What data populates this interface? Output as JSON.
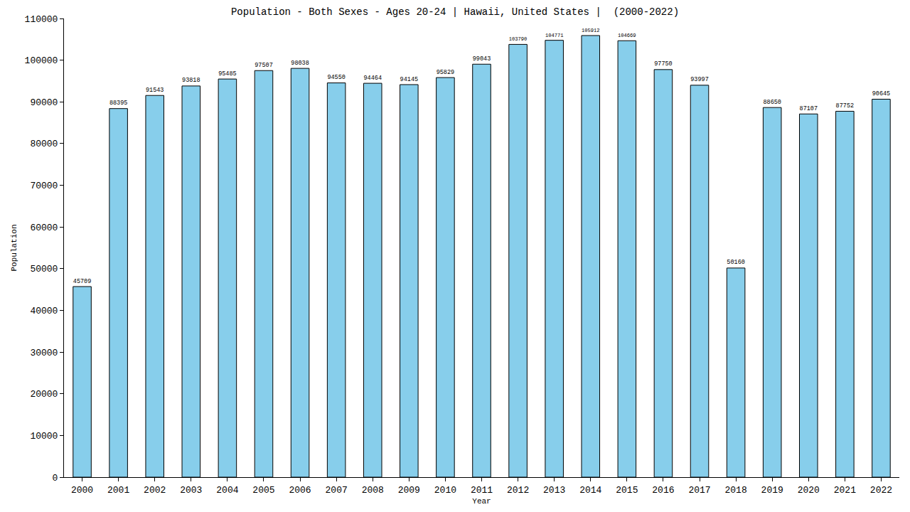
{
  "chart_data": {
    "type": "bar",
    "title": "Population - Both Sexes - Ages 20-24 | Hawaii, United States |  (2000-2022)",
    "x_label": "Year",
    "y_label": "Population",
    "categories": [
      "2000",
      "2001",
      "2002",
      "2003",
      "2004",
      "2005",
      "2006",
      "2007",
      "2008",
      "2009",
      "2010",
      "2011",
      "2012",
      "2013",
      "2014",
      "2015",
      "2016",
      "2017",
      "2018",
      "2019",
      "2020",
      "2021",
      "2022"
    ],
    "values": [
      45709,
      88395,
      91543,
      93818,
      95485,
      97507,
      98038,
      94550,
      94464,
      94145,
      95829,
      99043,
      103790,
      104771,
      105912,
      104669,
      97750,
      93997,
      50160,
      88650,
      87107,
      87752,
      90645
    ],
    "color": "#87ceeb",
    "ylim": [
      0,
      110000
    ],
    "yticks": [
      0,
      10000,
      20000,
      30000,
      40000,
      50000,
      60000,
      70000,
      80000,
      90000,
      100000,
      110000
    ],
    "grid": false,
    "data_labels": true
  }
}
